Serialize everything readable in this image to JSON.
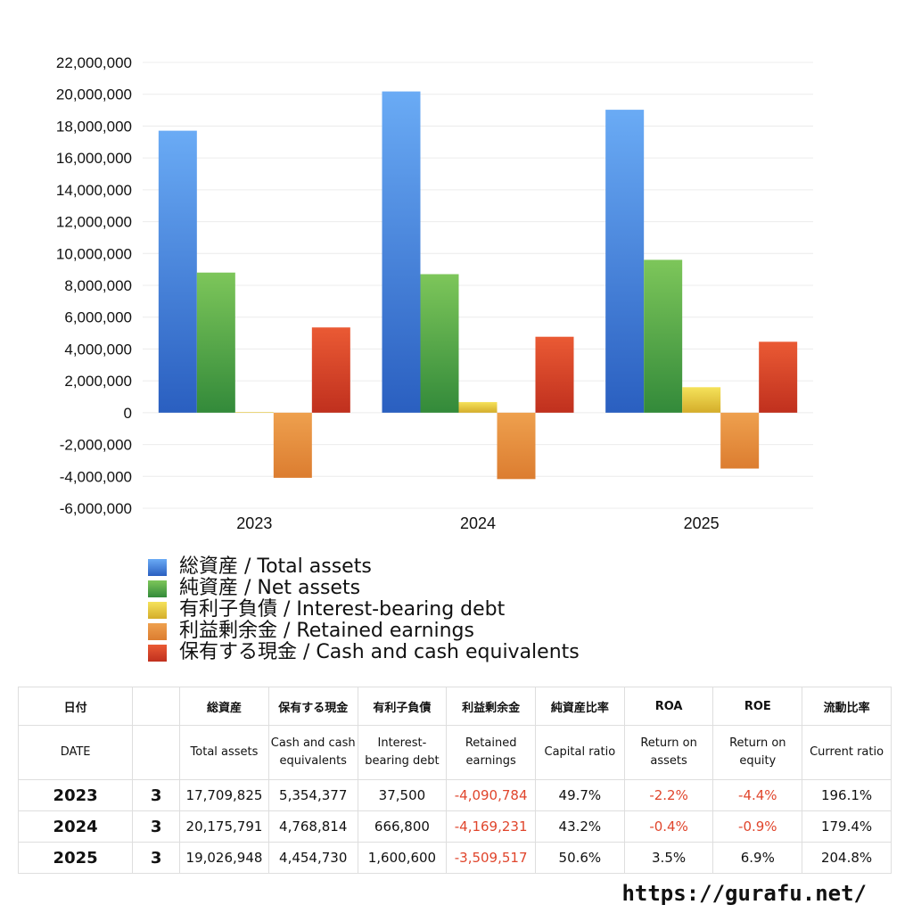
{
  "chart_data": {
    "type": "bar",
    "categories": [
      "2023",
      "2024",
      "2025"
    ],
    "ylim": [
      -6000000,
      22000000
    ],
    "y_tick_step": 2000000,
    "grid": true,
    "legend_position": "bottom",
    "series": [
      {
        "name": "総資産 / Total assets",
        "values": [
          17709825,
          20175791,
          19026948
        ],
        "color": "#3a7fe0",
        "color_top": "#6aabf5",
        "color_bottom": "#2a5fc0"
      },
      {
        "name": "純資産 / Net assets",
        "values": [
          8800000,
          8700000,
          9600000
        ],
        "color": "#4ea84a",
        "color_top": "#7dc65a",
        "color_bottom": "#338a3a"
      },
      {
        "name": "有利子負債 / Interest-bearing debt",
        "values": [
          37500,
          666800,
          1600600
        ],
        "color": "#e8c93a",
        "color_top": "#f5e25a",
        "color_bottom": "#d4ad2a"
      },
      {
        "name": "利益剰余金 / Retained earnings",
        "values": [
          -4090784,
          -4169231,
          -3509517
        ],
        "color": "#e8893a",
        "color_top": "#eea04e",
        "color_bottom": "#dc7d30"
      },
      {
        "name": "保有する現金 /  Cash and cash equivalents",
        "values": [
          5354377,
          4768814,
          4454730
        ],
        "color": "#d8442a",
        "color_top": "#ea5a34",
        "color_bottom": "#c0301e"
      }
    ]
  },
  "table": {
    "header_ja": [
      "日付",
      "",
      "総資産",
      "保有する現金",
      "有利子負債",
      "利益剰余金",
      "純資産比率",
      "ROA",
      "ROE",
      "流動比率"
    ],
    "header_en": [
      "DATE",
      "",
      "Total assets",
      "Cash and cash equivalents",
      "Interest-bearing debt",
      "Retained earnings",
      "Capital ratio",
      "Return on assets",
      "Return on equity",
      "Current ratio"
    ],
    "rows": [
      {
        "year": "2023",
        "month": "3",
        "total_assets": "17,709,825",
        "cash": "5,354,377",
        "debt": "37,500",
        "retained": "-4,090,784",
        "capital_ratio": "49.7%",
        "roa": "-2.2%",
        "roe": "-4.4%",
        "current_ratio": "196.1%"
      },
      {
        "year": "2024",
        "month": "3",
        "total_assets": "20,175,791",
        "cash": "4,768,814",
        "debt": "666,800",
        "retained": "-4,169,231",
        "capital_ratio": "43.2%",
        "roa": "-0.4%",
        "roe": "-0.9%",
        "current_ratio": "179.4%"
      },
      {
        "year": "2025",
        "month": "3",
        "total_assets": "19,026,948",
        "cash": "4,454,730",
        "debt": "1,600,600",
        "retained": "-3,509,517",
        "capital_ratio": "50.6%",
        "roa": "3.5%",
        "roe": "6.9%",
        "current_ratio": "204.8%"
      }
    ]
  },
  "site_url": "https://gurafu.net/"
}
